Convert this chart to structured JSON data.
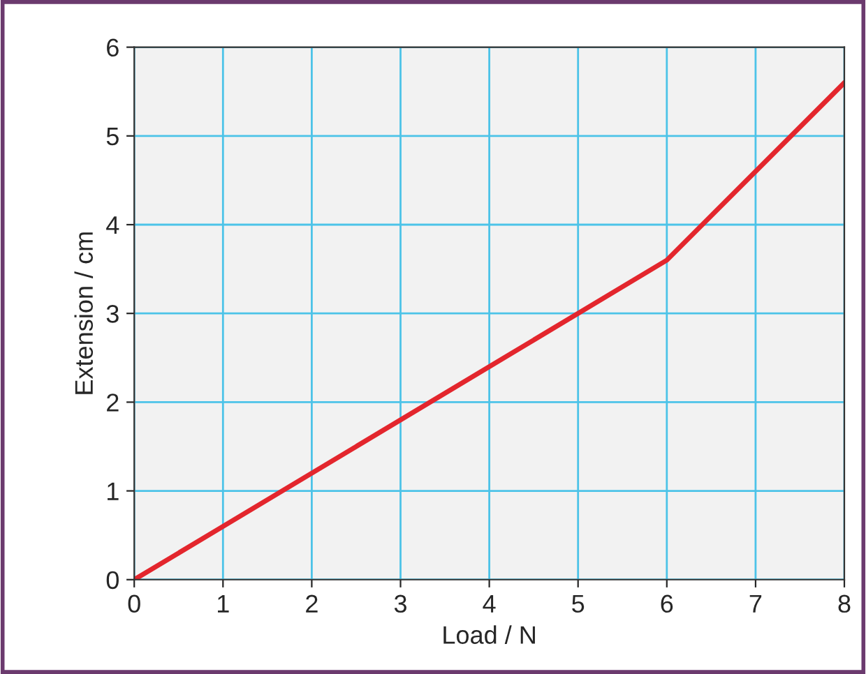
{
  "chart_data": {
    "type": "line",
    "xlabel": "Load / N",
    "ylabel": "Extension / cm",
    "x": [
      0,
      6,
      8
    ],
    "series": [
      {
        "color": "#e3262d",
        "values": [
          0,
          3.6,
          5.6
        ]
      }
    ],
    "xlim": [
      0,
      8
    ],
    "ylim": [
      0,
      6
    ],
    "xticks": [
      0,
      1,
      2,
      3,
      4,
      5,
      6,
      7,
      8
    ],
    "yticks": [
      0,
      1,
      2,
      3,
      4,
      5,
      6
    ],
    "grid": true,
    "legend": false,
    "marker": "none",
    "line_style": "solid"
  }
}
